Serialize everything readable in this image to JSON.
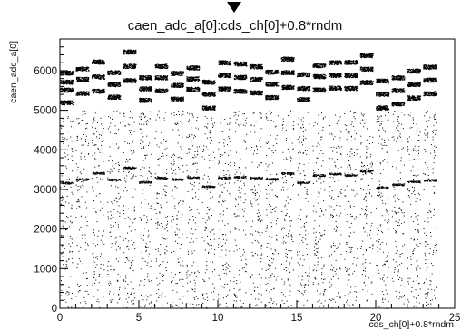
{
  "chart_data": {
    "type": "scatter",
    "title": "caen_adc_a[0]:cds_ch[0]+0.8*rndm",
    "xlabel": "cds_ch[0]+0.8*rndm",
    "ylabel": "caen_adc_a[0]",
    "xlim": [
      0,
      25
    ],
    "ylim": [
      0,
      6800
    ],
    "x_ticks": [
      0,
      5,
      10,
      15,
      20,
      25
    ],
    "y_ticks": [
      0,
      1000,
      2000,
      3000,
      4000,
      5000,
      6000
    ],
    "grid": false,
    "legend": "none",
    "marker_color": "#000000",
    "channel_clusters": {
      "description_free_values": true,
      "channel": [
        0,
        1,
        2,
        3,
        4,
        5,
        6,
        7,
        8,
        9,
        10,
        11,
        12,
        13,
        14,
        15,
        16,
        17,
        18,
        19,
        20,
        21,
        22,
        23
      ],
      "lower_level": [
        3170,
        3260,
        3420,
        3250,
        3560,
        3190,
        3300,
        3260,
        3310,
        3080,
        3300,
        3320,
        3300,
        3270,
        3410,
        3180,
        3360,
        3400,
        3360,
        3470,
        3060,
        3130,
        3200,
        3240
      ],
      "upper_levels": [
        [
          5200,
          5520,
          5720,
          5950
        ],
        [
          5440,
          5790,
          6050
        ],
        [
          5490,
          5850,
          6230
        ],
        [
          5340,
          5660,
          5960
        ],
        [
          5760,
          6120,
          6480
        ],
        [
          5260,
          5550,
          5830
        ],
        [
          5500,
          5830,
          6120
        ],
        [
          5290,
          5640,
          5940
        ],
        [
          5540,
          5800,
          6080
        ],
        [
          5070,
          5410,
          5720
        ],
        [
          5550,
          5890,
          6210
        ],
        [
          5490,
          5840,
          6180
        ],
        [
          5450,
          5790,
          6110
        ],
        [
          5330,
          5670,
          5970
        ],
        [
          5590,
          5960,
          6300
        ],
        [
          5280,
          5560,
          5910
        ],
        [
          5520,
          5860,
          6140
        ],
        [
          5570,
          5890,
          6210
        ],
        [
          5560,
          5890,
          6220
        ],
        [
          5710,
          6050,
          6390
        ],
        [
          5070,
          5420,
          5750
        ],
        [
          5170,
          5510,
          5830
        ],
        [
          5320,
          5660,
          6000
        ],
        [
          5430,
          5770,
          6100
        ]
      ]
    }
  }
}
